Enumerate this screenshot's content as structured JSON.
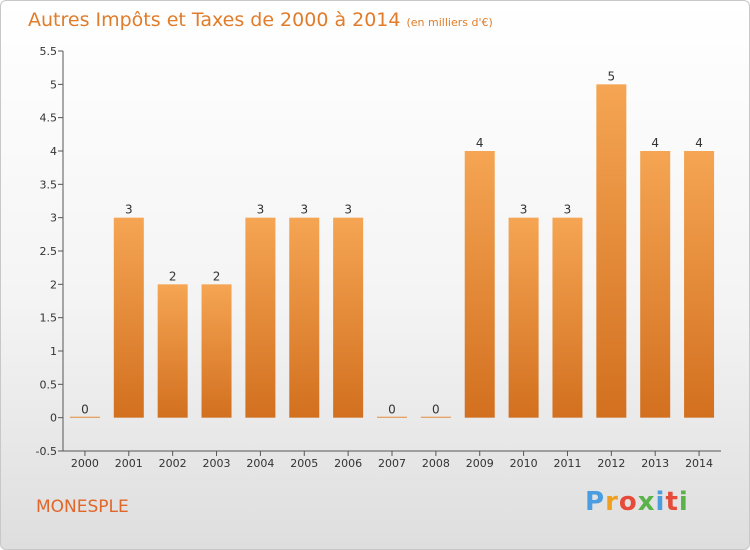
{
  "header": {
    "title": "Autres Impôts et Taxes de 2000 à 2014",
    "subtitle": "(en milliers d'€)"
  },
  "place": "MONESPLE",
  "logo": {
    "letters": [
      "P",
      "r",
      "o",
      "x",
      "i",
      "t",
      "i"
    ],
    "colors": [
      "#4a9de0",
      "#f0a020",
      "#e64a3a",
      "#59b24a",
      "#4a9de0",
      "#e64a3a",
      "#59b24a"
    ]
  },
  "colors": {
    "title": "#e07c2a",
    "bar_top": "#f5a553",
    "bar_bottom": "#d2701f",
    "axis": "#555555",
    "grid": "#cccccc"
  },
  "chart_data": {
    "type": "bar",
    "categories": [
      "2000",
      "2001",
      "2002",
      "2003",
      "2004",
      "2005",
      "2006",
      "2007",
      "2008",
      "2009",
      "2010",
      "2011",
      "2012",
      "2013",
      "2014"
    ],
    "values": [
      0,
      3,
      2,
      2,
      3,
      3,
      3,
      0,
      0,
      4,
      3,
      3,
      5,
      4,
      4
    ],
    "data_labels": [
      "0",
      "3",
      "2",
      "2",
      "3",
      "3",
      "3",
      "0",
      "0",
      "4",
      "3",
      "3",
      "5",
      "4",
      "4"
    ],
    "ylim": [
      -0.5,
      5.5
    ],
    "yticks": [
      -0.5,
      0,
      0.5,
      1,
      1.5,
      2,
      2.5,
      3,
      3.5,
      4,
      4.5,
      5,
      5.5
    ],
    "ytick_labels": [
      "-0.5",
      "0",
      "0.5",
      "1",
      "1.5",
      "2",
      "2.5",
      "3",
      "3.5",
      "4",
      "4.5",
      "5",
      "5.5"
    ],
    "grid": false,
    "title": "Autres Impôts et Taxes de 2000 à 2014",
    "xlabel": "",
    "ylabel": ""
  }
}
